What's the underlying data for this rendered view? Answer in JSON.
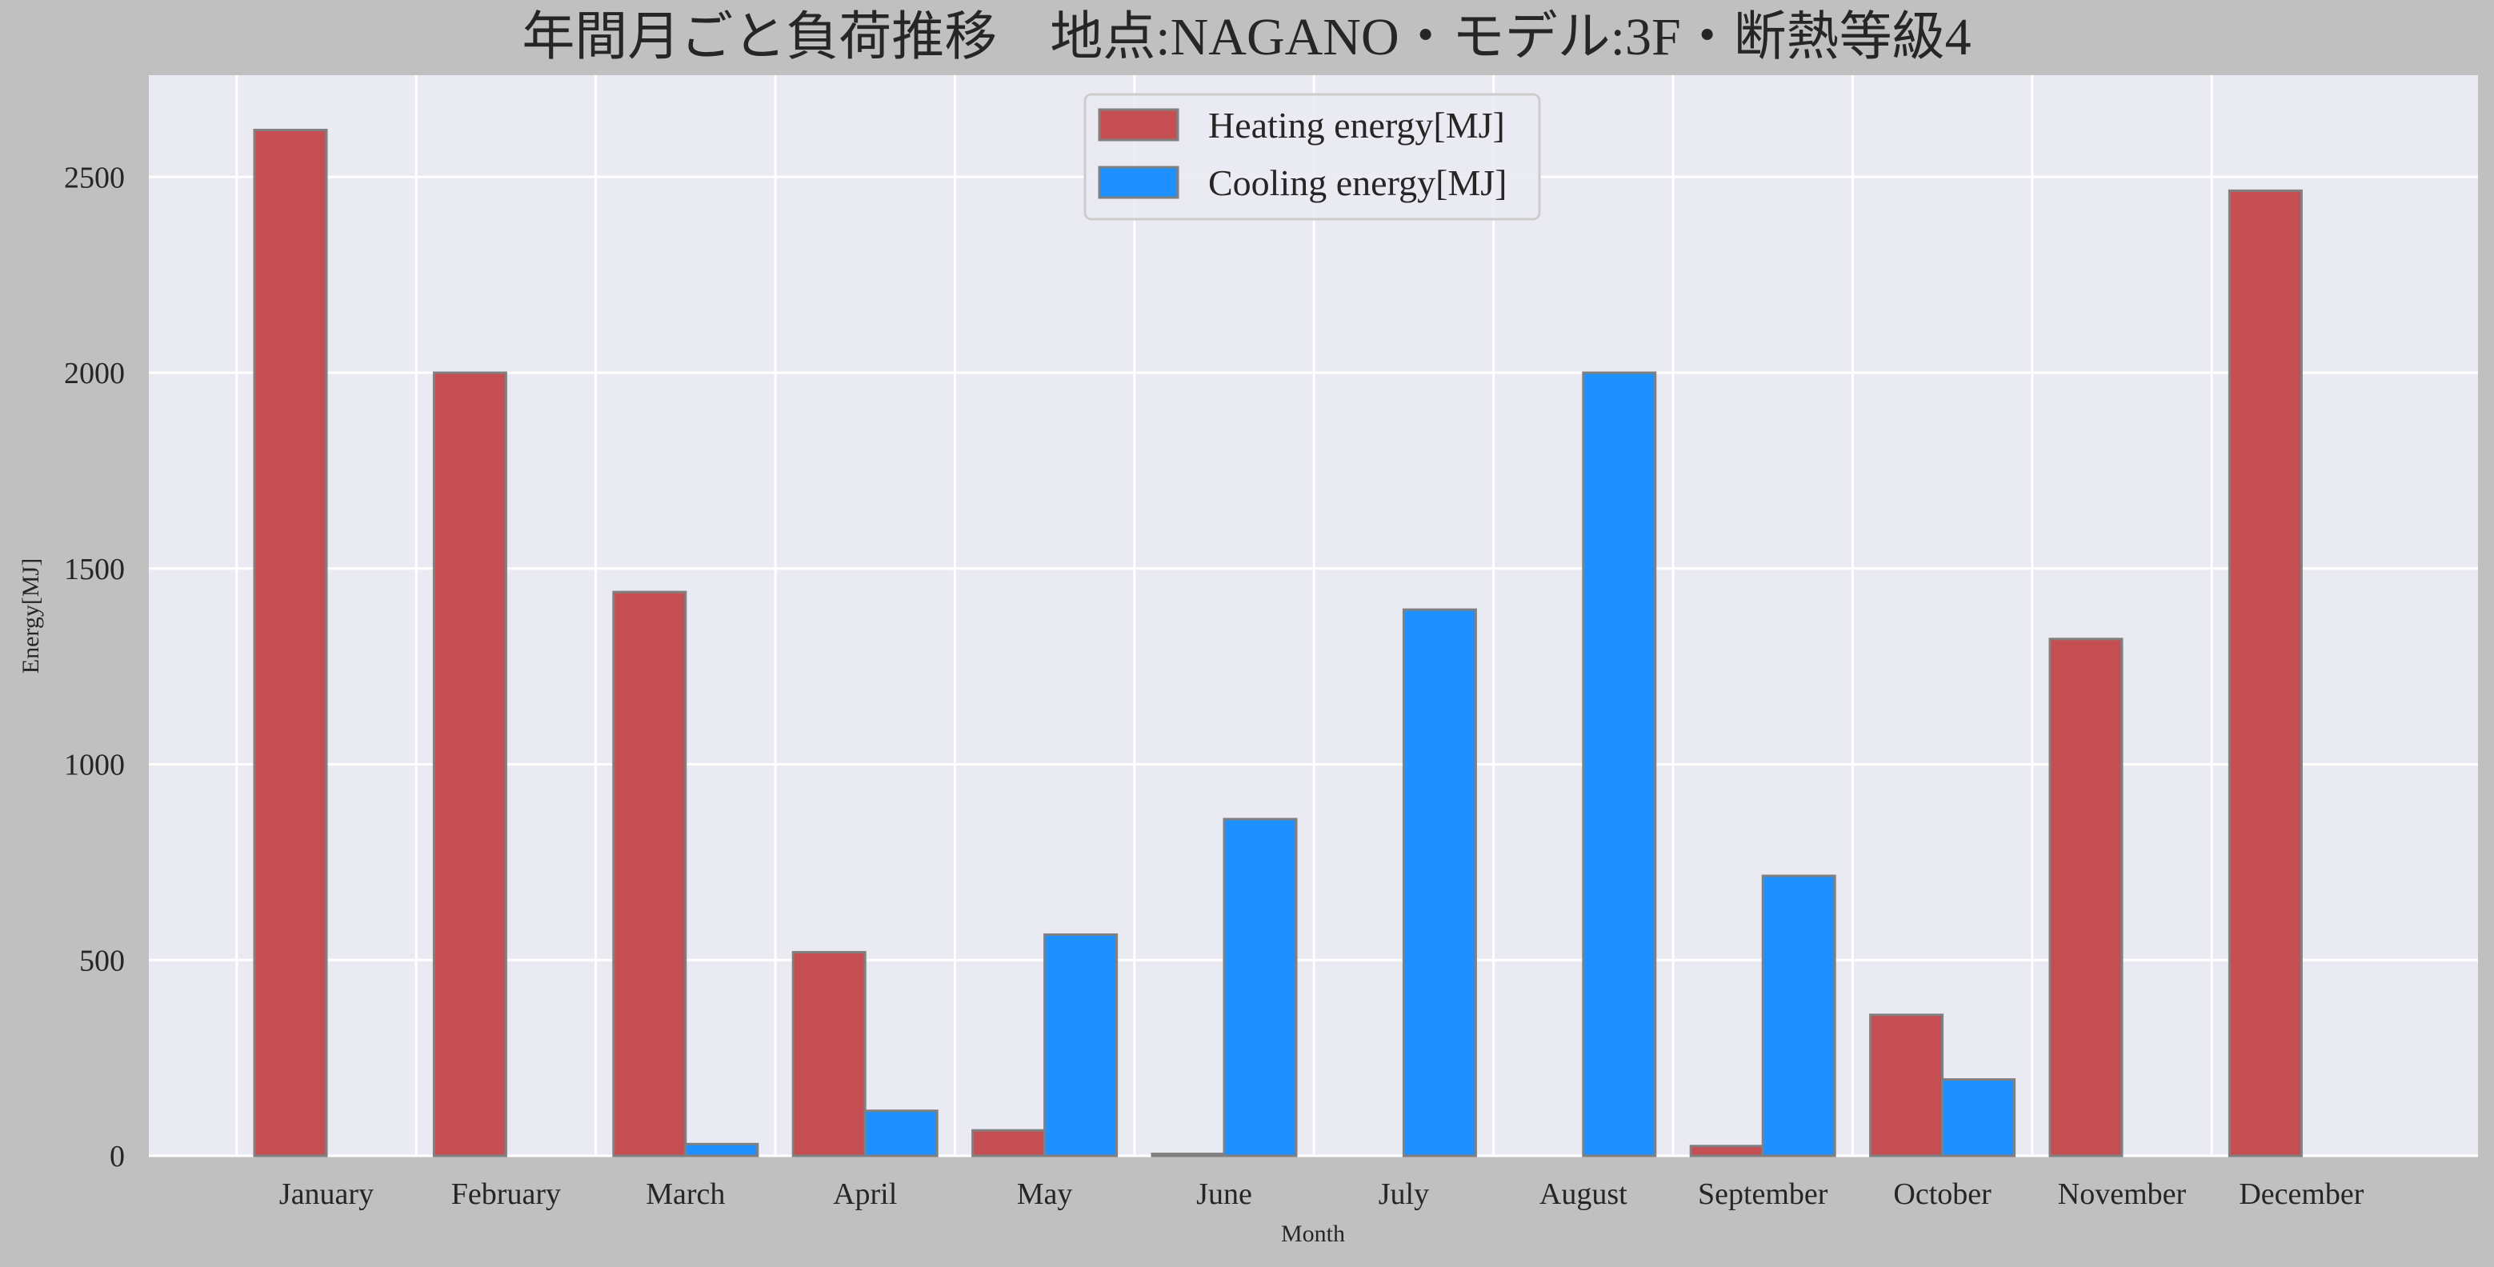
{
  "chart_data": {
    "type": "bar",
    "title": "年間月ごと負荷推移　地点:NAGANO・モデル:3F・断熱等級4",
    "xlabel": "Month",
    "ylabel": "Energy[MJ]",
    "categories": [
      "January",
      "February",
      "March",
      "April",
      "May",
      "June",
      "July",
      "August",
      "September",
      "October",
      "November",
      "December"
    ],
    "series": [
      {
        "name": "Heating energy[MJ]",
        "color": "#c44e52",
        "values": [
          2620,
          2000,
          1440,
          520,
          65,
          5,
          0,
          0,
          25,
          360,
          1320,
          2465
        ]
      },
      {
        "name": "Cooling energy[MJ]",
        "color": "#1e90ff",
        "values": [
          0,
          0,
          30,
          115,
          565,
          860,
          1395,
          2000,
          715,
          195,
          0,
          0
        ]
      }
    ],
    "yticks": [
      0,
      500,
      1000,
      1500,
      2000,
      2500
    ],
    "ylim": [
      0,
      2760
    ],
    "grid": true,
    "legend": "top-center",
    "colors": {
      "figure_background": "#c0c0c0",
      "plot_background": "#eaeaf2",
      "grid": "#ffffff",
      "bar_edge": "#808080"
    }
  }
}
